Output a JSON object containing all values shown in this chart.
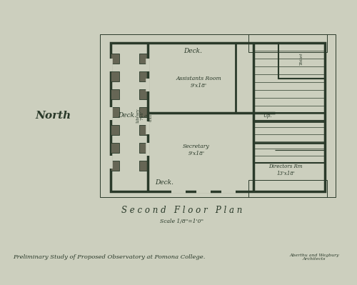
{
  "bg_color": "#cccfbe",
  "line_color": "#2a3a2a",
  "title": "S e c o n d   F l o o r   P l a n",
  "subtitle": "Scale 1/8\"=1'0\"",
  "bottom_text": "Preliminary Study of Proposed Observatory at Pomona College.",
  "architect_text": "Aberthu and Wegbury\nArchitects",
  "north_label": "North",
  "fig_width": 5.0,
  "fig_height": 3.99
}
